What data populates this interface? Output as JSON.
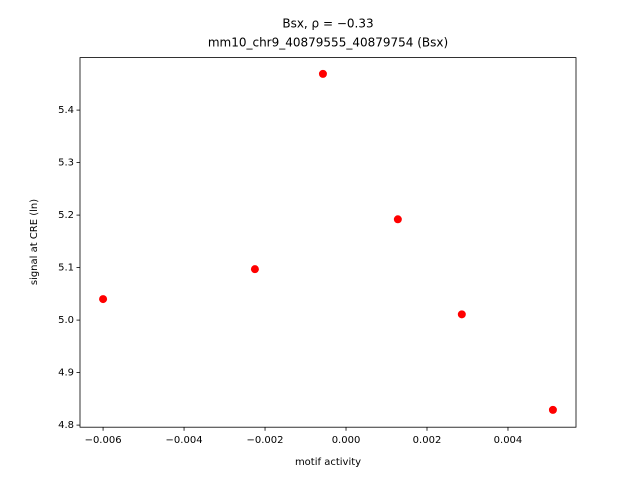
{
  "chart_data": {
    "type": "scatter",
    "title": "Bsx, ρ = −0.33",
    "subtitle": "mm10_chr9_40879555_40879754 (Bsx)",
    "x_label": "motif activity",
    "y_label": "signal at CRE (ln)",
    "color": "#ff0000",
    "x": [
      -0.006,
      -0.00225,
      -0.00057,
      0.00128,
      0.00286,
      0.00511
    ],
    "values": [
      5.04,
      5.097,
      5.469,
      5.192,
      5.011,
      4.829
    ],
    "xlim": [
      -0.00657,
      0.00568
    ],
    "ylim": [
      4.796,
      5.5
    ],
    "xticks": [
      {
        "value": -0.006,
        "label": "−0.006"
      },
      {
        "value": -0.004,
        "label": "−0.004"
      },
      {
        "value": -0.002,
        "label": "−0.002"
      },
      {
        "value": 0,
        "label": "0.000"
      },
      0.002,
      0.004
    ],
    "yticks": [
      4.8,
      4.9,
      {
        "value": 5.0,
        "label": "5.0"
      },
      5.1,
      5.2,
      5.3,
      5.4
    ]
  }
}
